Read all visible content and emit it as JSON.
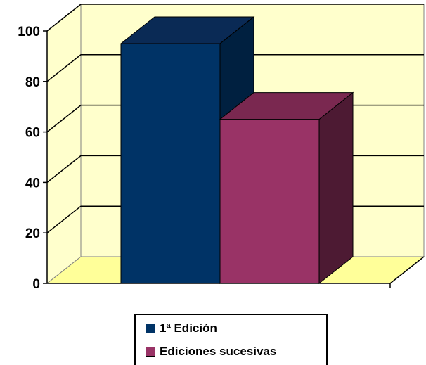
{
  "chart_data": {
    "type": "bar",
    "title": "",
    "xlabel": "",
    "ylabel": "",
    "ylim": [
      0,
      100
    ],
    "yticks": [
      "0",
      "20",
      "40",
      "60",
      "80",
      "100"
    ],
    "three_d": true,
    "grid": true,
    "legend_position": "bottom",
    "series": [
      {
        "name": "1ª Edición",
        "values": [
          95
        ],
        "color": "#003366",
        "side_color": "#002040",
        "top_color": "#0a2a55"
      },
      {
        "name": "Ediciones sucesivas",
        "values": [
          65
        ],
        "color": "#993366",
        "side_color": "#4d1a33",
        "top_color": "#7a2850"
      }
    ],
    "wall_color": "#ffffcc",
    "floor_color": "#ffff99"
  }
}
